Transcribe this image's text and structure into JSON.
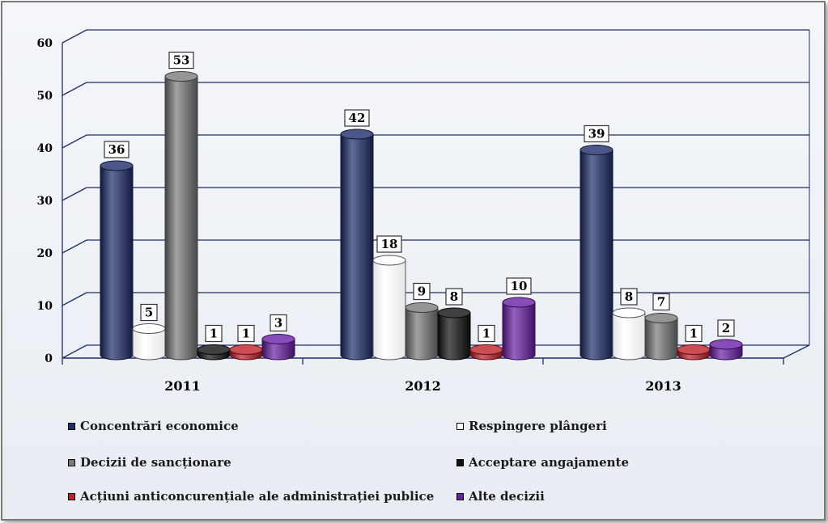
{
  "chart_data": {
    "type": "bar",
    "categories": [
      "2011",
      "2012",
      "2013"
    ],
    "ylim": [
      0,
      60
    ],
    "yticks": [
      "0",
      "10",
      "20",
      "30",
      "40",
      "50",
      "60"
    ],
    "series": [
      {
        "name": "Concentrări economice",
        "color": "#1f2d6b",
        "values": [
          36,
          42,
          39
        ],
        "labels": [
          "36",
          "42",
          "39"
        ]
      },
      {
        "name": "Respingere plângeri",
        "color": "#ffffff",
        "values": [
          5,
          18,
          8
        ],
        "labels": [
          "5",
          "18",
          "8"
        ]
      },
      {
        "name": "Decizii de sancționare",
        "color": "#7a7a7a",
        "values": [
          53,
          9,
          7
        ],
        "labels": [
          "53",
          "9",
          "7"
        ]
      },
      {
        "name": "Acceptare angajamente",
        "color": "#111111",
        "values": [
          1,
          8,
          null
        ],
        "labels": [
          "1",
          "8",
          null
        ]
      },
      {
        "name": "Acțiuni anticoncurențiale ale administrației publice",
        "color": "#c0202a",
        "values": [
          1,
          1,
          1
        ],
        "labels": [
          "1",
          "1",
          "1"
        ]
      },
      {
        "name": "Alte decizii",
        "color": "#6a1fa6",
        "values": [
          3,
          10,
          2
        ],
        "labels": [
          "3",
          "10",
          "2"
        ]
      }
    ],
    "legend_position": "bottom",
    "grid": true
  }
}
